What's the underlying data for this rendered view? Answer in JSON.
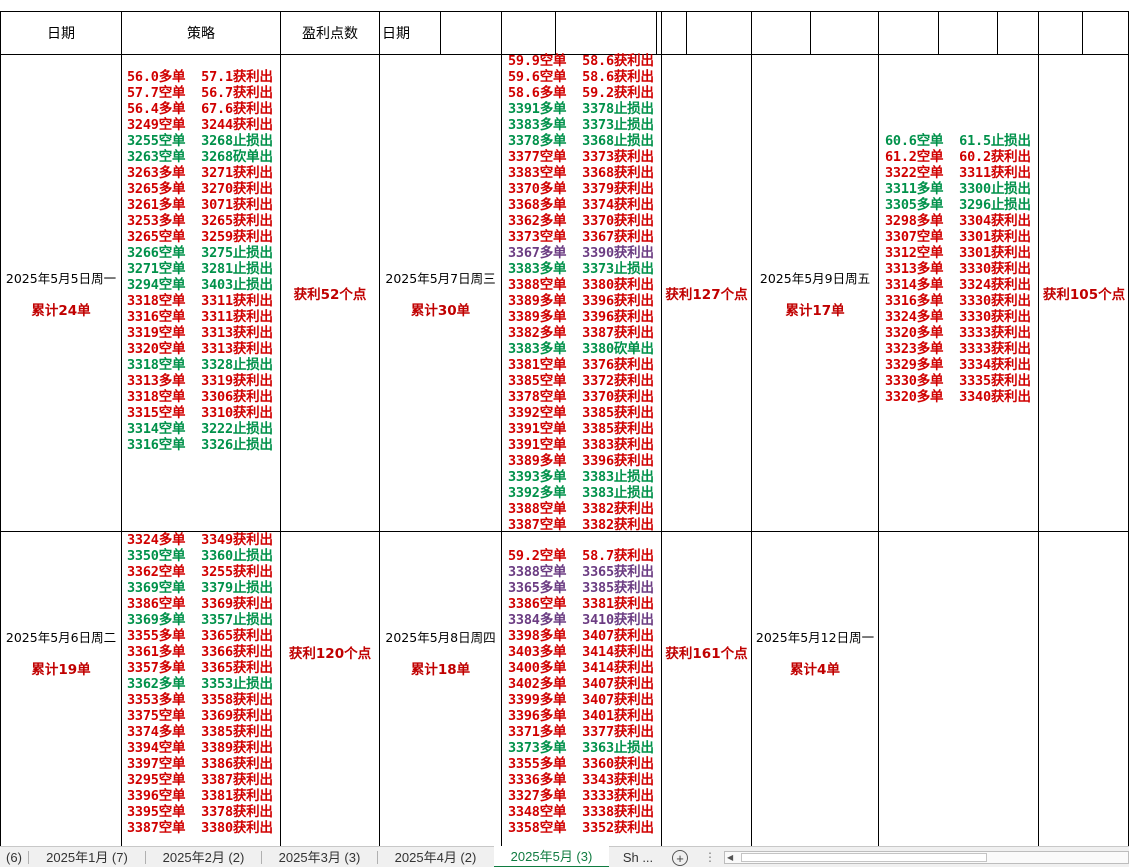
{
  "headers": {
    "date1": "日期",
    "strategy": "策略",
    "profit_points": "盈利点数",
    "date2": "日期"
  },
  "days": [
    {
      "date": "2025年5月5日周一",
      "total": "累计24单",
      "profit": "获利52个点",
      "lines": [
        [
          "56.0多单  57.1获利出",
          "r"
        ],
        [
          "57.7空单  56.7获利出",
          "r"
        ],
        [
          "56.4多单  67.6获利出",
          "r"
        ],
        [
          "3249空单  3244获利出",
          "r"
        ],
        [
          "3255空单  3268止损出",
          "g"
        ],
        [
          "3263空单  3268砍单出",
          "g"
        ],
        [
          "3263多单  3271获利出",
          "r"
        ],
        [
          "3265多单  3270获利出",
          "r"
        ],
        [
          "3261多单  3071获利出",
          "r"
        ],
        [
          "3253多单  3265获利出",
          "r"
        ],
        [
          "3265空单  3259获利出",
          "r"
        ],
        [
          "3266空单  3275止损出",
          "g"
        ],
        [
          "3271空单  3281止损出",
          "g"
        ],
        [
          "3294空单  3403止损出",
          "g"
        ],
        [
          "3318空单  3311获利出",
          "r"
        ],
        [
          "3316空单  3311获利出",
          "r"
        ],
        [
          "3319空单  3313获利出",
          "r"
        ],
        [
          "3320空单  3313获利出",
          "r"
        ],
        [
          "3318空单  3328止损出",
          "g"
        ],
        [
          "3313多单  3319获利出",
          "r"
        ],
        [
          "3318空单  3306获利出",
          "r"
        ],
        [
          "3315空单  3310获利出",
          "r"
        ],
        [
          "3314空单  3222止损出",
          "g"
        ],
        [
          "3316空单  3326止损出",
          "g"
        ]
      ]
    },
    {
      "date": "2025年5月6日周二",
      "total": "累计19单",
      "profit": "获利120个点",
      "lines": [
        [
          "3324多单  3349获利出",
          "r"
        ],
        [
          "3350空单  3360止损出",
          "g"
        ],
        [
          "3362空单  3255获利出",
          "r"
        ],
        [
          "3369空单  3379止损出",
          "g"
        ],
        [
          "3386空单  3369获利出",
          "r"
        ],
        [
          "3369多单  3357止损出",
          "g"
        ],
        [
          "3355多单  3365获利出",
          "r"
        ],
        [
          "3361多单  3366获利出",
          "r"
        ],
        [
          "3357多单  3365获利出",
          "r"
        ],
        [
          "3362多单  3353止损出",
          "g"
        ],
        [
          "3353多单  3358获利出",
          "r"
        ],
        [
          "3375空单  3369获利出",
          "r"
        ],
        [
          "3374多单  3385获利出",
          "r"
        ],
        [
          "3394空单  3389获利出",
          "r"
        ],
        [
          "3397空单  3386获利出",
          "r"
        ],
        [
          "3295空单  3387获利出",
          "r"
        ],
        [
          "3396空单  3381获利出",
          "r"
        ],
        [
          "3395空单  3378获利出",
          "r"
        ],
        [
          "3387空单  3380获利出",
          "r"
        ]
      ]
    },
    {
      "date": "2025年5月7日周三",
      "total": "累计30单",
      "profit": "获利127个点",
      "lines": [
        [
          "59.9空单  58.6获利出",
          "r"
        ],
        [
          "59.6空单  58.6获利出",
          "r"
        ],
        [
          "58.6多单  59.2获利出",
          "r"
        ],
        [
          "3391多单  3378止损出",
          "g"
        ],
        [
          "3383多单  3373止损出",
          "g"
        ],
        [
          "3378多单  3368止损出",
          "g"
        ],
        [
          "3377空单  3373获利出",
          "r"
        ],
        [
          "3383空单  3368获利出",
          "r"
        ],
        [
          "3370多单  3379获利出",
          "r"
        ],
        [
          "3368多单  3374获利出",
          "r"
        ],
        [
          "3362多单  3370获利出",
          "r"
        ],
        [
          "3373空单  3367获利出",
          "r"
        ],
        [
          "3367多单  3390获利出",
          "p"
        ],
        [
          "3383多单  3373止损出",
          "g"
        ],
        [
          "3388空单  3380获利出",
          "r"
        ],
        [
          "3389多单  3396获利出",
          "r"
        ],
        [
          "3389多单  3396获利出",
          "r"
        ],
        [
          "3382多单  3387获利出",
          "r"
        ],
        [
          "3383多单  3380砍单出",
          "g"
        ],
        [
          "3381空单  3376获利出",
          "r"
        ],
        [
          "3385空单  3372获利出",
          "r"
        ],
        [
          "3378空单  3370获利出",
          "r"
        ],
        [
          "3392空单  3385获利出",
          "r"
        ],
        [
          "3391空单  3385获利出",
          "r"
        ],
        [
          "3391空单  3383获利出",
          "r"
        ],
        [
          "3389多单  3396获利出",
          "r"
        ],
        [
          "3393多单  3383止损出",
          "g"
        ],
        [
          "3392多单  3383止损出",
          "g"
        ],
        [
          "3388空单  3382获利出",
          "r"
        ],
        [
          "3387空单  3382获利出",
          "r"
        ]
      ]
    },
    {
      "date": "2025年5月8日周四",
      "total": "累计18单",
      "profit": "获利161个点",
      "lines": [
        [
          "59.2空单  58.7获利出",
          "r"
        ],
        [
          "3388空单  3365获利出",
          "p"
        ],
        [
          "3365多单  3385获利出",
          "p"
        ],
        [
          "3386空单  3381获利出",
          "r"
        ],
        [
          "3384多单  3410获利出",
          "p"
        ],
        [
          "3398多单  3407获利出",
          "r"
        ],
        [
          "3403多单  3414获利出",
          "r"
        ],
        [
          "3400多单  3414获利出",
          "r"
        ],
        [
          "3402多单  3407获利出",
          "r"
        ],
        [
          "3399多单  3407获利出",
          "r"
        ],
        [
          "3396多单  3401获利出",
          "r"
        ],
        [
          "3371多单  3377获利出",
          "r"
        ],
        [
          "3373多单  3363止损出",
          "g"
        ],
        [
          "3355多单  3360获利出",
          "r"
        ],
        [
          "3336多单  3343获利出",
          "r"
        ],
        [
          "3327多单  3333获利出",
          "r"
        ],
        [
          "3348空单  3338获利出",
          "r"
        ],
        [
          "3358空单  3352获利出",
          "r"
        ]
      ]
    },
    {
      "date": "2025年5月9日周五",
      "total": "累计17单",
      "profit": "获利105个点",
      "lines": [
        [
          "60.6空单  61.5止损出",
          "g"
        ],
        [
          "61.2空单  60.2获利出",
          "r"
        ],
        [
          "3322空单  3311获利出",
          "r"
        ],
        [
          "3311多单  3300止损出",
          "g"
        ],
        [
          "3305多单  3296止损出",
          "g"
        ],
        [
          "3298多单  3304获利出",
          "r"
        ],
        [
          "3307空单  3301获利出",
          "r"
        ],
        [
          "3312空单  3301获利出",
          "r"
        ],
        [
          "3313多单  3330获利出",
          "r"
        ],
        [
          "3314多单  3324获利出",
          "r"
        ],
        [
          "3316多单  3330获利出",
          "r"
        ],
        [
          "3324多单  3330获利出",
          "r"
        ],
        [
          "3320多单  3333获利出",
          "r"
        ],
        [
          "3323多单  3333获利出",
          "r"
        ],
        [
          "3329多单  3334获利出",
          "r"
        ],
        [
          "3330多单  3335获利出",
          "r"
        ],
        [
          "3320多单  3340获利出",
          "r"
        ]
      ]
    },
    {
      "date": "2025年5月12日周一",
      "total": "累计4单",
      "profit": "",
      "lines": []
    }
  ],
  "tabs": [
    {
      "label": "(6)"
    },
    {
      "label": "2025年1月 (7)"
    },
    {
      "label": "2025年2月 (2)"
    },
    {
      "label": "2025年3月 (3)"
    },
    {
      "label": "2025年4月 (2)"
    },
    {
      "label": "2025年5月 (3)",
      "active": true
    },
    {
      "label": "Sh ..."
    }
  ],
  "tabbar": {
    "add_symbol": "+",
    "more_symbol": "⋮",
    "scroll_arrow": "◀"
  },
  "colors": {
    "profit_red": "#d00000",
    "loss_green": "#00914a",
    "purple": "#6b3c82",
    "active_tab": "#107c41"
  }
}
